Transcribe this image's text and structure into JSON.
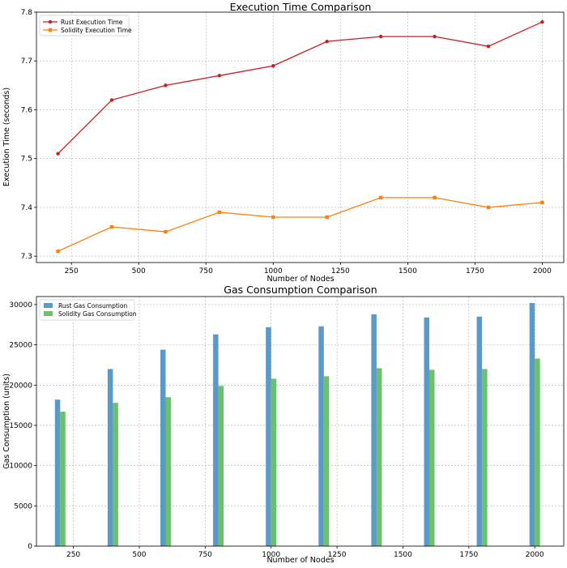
{
  "chart_data": [
    {
      "type": "line",
      "title": "Execution Time Comparison",
      "xlabel": "Number of Nodes",
      "ylabel": "Execution Time (seconds)",
      "x": [
        200,
        400,
        600,
        800,
        1000,
        1200,
        1400,
        1600,
        1800,
        2000
      ],
      "xlim": [
        120,
        2080
      ],
      "ylim": [
        7.287,
        7.8
      ],
      "xticks": [
        250,
        500,
        750,
        1000,
        1250,
        1500,
        1750,
        2000
      ],
      "yticks": [
        7.3,
        7.4,
        7.5,
        7.6,
        7.7,
        7.8
      ],
      "grid": true,
      "legend_position": "top-left",
      "series": [
        {
          "name": "Rust Execution Time",
          "color": "#c81d25",
          "marker": "circle",
          "values": [
            7.51,
            7.62,
            7.65,
            7.67,
            7.69,
            7.74,
            7.75,
            7.75,
            7.73,
            7.78
          ]
        },
        {
          "name": "Solidity Execution Time",
          "color": "#ff7f0e",
          "marker": "square",
          "values": [
            7.31,
            7.36,
            7.35,
            7.39,
            7.38,
            7.38,
            7.42,
            7.42,
            7.4,
            7.41
          ]
        }
      ]
    },
    {
      "type": "bar",
      "title": "Gas Consumption Comparison",
      "xlabel": "Number of Nodes",
      "ylabel": "Gas Consumption (units)",
      "x": [
        200,
        400,
        600,
        800,
        1000,
        1200,
        1400,
        1600,
        1800,
        2000
      ],
      "xlim": [
        110,
        2110
      ],
      "ylim": [
        0,
        31000
      ],
      "xticks": [
        250,
        500,
        750,
        1000,
        1250,
        1500,
        1750,
        2000
      ],
      "yticks": [
        0,
        5000,
        10000,
        15000,
        20000,
        25000,
        30000
      ],
      "grid": true,
      "legend_position": "top-left",
      "series": [
        {
          "name": "Rust Gas Consumption",
          "color": "#5a9ac9",
          "values": [
            18200,
            22000,
            24400,
            26300,
            27200,
            27300,
            28800,
            28400,
            28500,
            30200
          ]
        },
        {
          "name": "Solidity Gas Consumption",
          "color": "#6cc16c",
          "values": [
            16700,
            17800,
            18500,
            19900,
            20800,
            21100,
            22100,
            21900,
            22000,
            23300
          ]
        }
      ]
    }
  ]
}
